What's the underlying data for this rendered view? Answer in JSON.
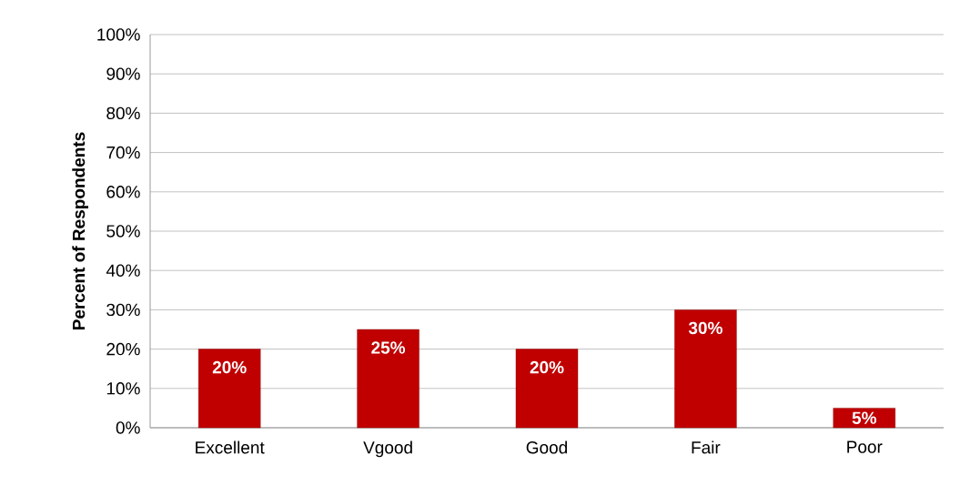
{
  "chart_data": {
    "type": "bar",
    "ylabel": "Percent of Respondents",
    "categories": [
      "Excellent",
      "Vgood",
      "Good",
      "Fair",
      "Poor"
    ],
    "values": [
      20,
      25,
      20,
      30,
      5
    ],
    "value_labels": [
      "20%",
      "25%",
      "20%",
      "30%",
      "5%"
    ],
    "color": "#c00000",
    "ylim": [
      0,
      100
    ],
    "yticks": [
      {
        "value": 0,
        "label": "0%"
      },
      {
        "value": 10,
        "label": "10%"
      },
      {
        "value": 20,
        "label": "20%"
      },
      {
        "value": 30,
        "label": "30%"
      },
      {
        "value": 40,
        "label": "40%"
      },
      {
        "value": 50,
        "label": "50%"
      },
      {
        "value": 60,
        "label": "60%"
      },
      {
        "value": 70,
        "label": "70%"
      },
      {
        "value": 80,
        "label": "80%"
      },
      {
        "value": 90,
        "label": "90%"
      },
      {
        "value": 100,
        "label": "100%"
      }
    ],
    "grid": "y"
  }
}
